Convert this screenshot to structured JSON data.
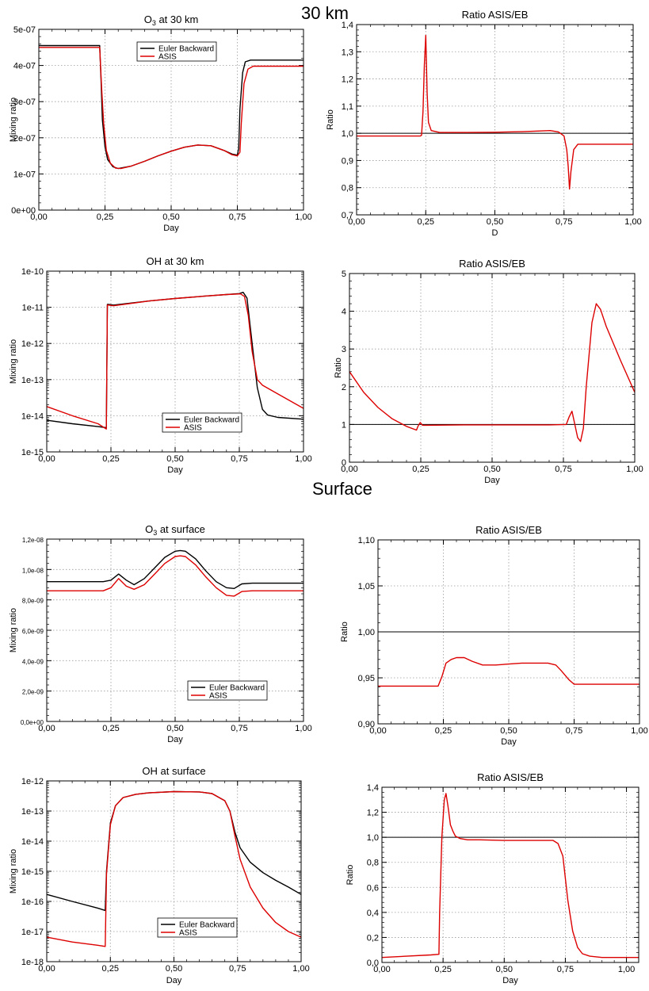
{
  "sections": {
    "top": "30 km",
    "middle": "Surface"
  },
  "colors": {
    "euler": "#000000",
    "asis": "#dd0000",
    "grid": "#9a9a9a"
  },
  "chart_data": [
    {
      "id": "o3-30km",
      "type": "line",
      "title": "O",
      "title_sub": "3",
      "title_rest": " at 30 km",
      "xlabel": "Day",
      "ylabel": "Mixing ratio",
      "yscale": "linear",
      "xlim": [
        0,
        1
      ],
      "ylim": [
        0,
        5e-07
      ],
      "xticks": [
        "0,00",
        "0,25",
        "0,50",
        "0,75",
        "1,00"
      ],
      "yticks": [
        [
          0,
          "0e+00"
        ],
        [
          1e-07,
          "1e-07"
        ],
        [
          2e-07,
          "2e-07"
        ],
        [
          3e-07,
          "3e-07"
        ],
        [
          4e-07,
          "4e-07"
        ],
        [
          5e-07,
          "5e-07"
        ]
      ],
      "ref_line": null,
      "legend": {
        "position": "top-center",
        "entries": [
          "Euler Backward",
          "ASIS"
        ]
      },
      "series": [
        {
          "name": "Euler Backward",
          "color": "euler",
          "x": [
            0,
            0.23,
            0.235,
            0.24,
            0.25,
            0.26,
            0.28,
            0.3,
            0.35,
            0.4,
            0.45,
            0.5,
            0.55,
            0.6,
            0.65,
            0.7,
            0.73,
            0.75,
            0.755,
            0.76,
            0.77,
            0.78,
            0.8,
            0.85,
            1
          ],
          "y": [
            4.55e-07,
            4.55e-07,
            3.6e-07,
            2.5e-07,
            1.75e-07,
            1.4e-07,
            1.2e-07,
            1.15e-07,
            1.22e-07,
            1.35e-07,
            1.5e-07,
            1.63e-07,
            1.74e-07,
            1.8e-07,
            1.78e-07,
            1.65e-07,
            1.55e-07,
            1.52e-07,
            1.7e-07,
            2.8e-07,
            3.8e-07,
            4.1e-07,
            4.15e-07,
            4.15e-07,
            4.15e-07
          ]
        },
        {
          "name": "ASIS",
          "color": "asis",
          "x": [
            0,
            0.23,
            0.237,
            0.245,
            0.255,
            0.27,
            0.29,
            0.31,
            0.35,
            0.4,
            0.45,
            0.5,
            0.55,
            0.6,
            0.65,
            0.7,
            0.73,
            0.75,
            0.76,
            0.765,
            0.775,
            0.79,
            0.81,
            0.85,
            1
          ],
          "y": [
            4.5e-07,
            4.5e-07,
            3.4e-07,
            2.4e-07,
            1.65e-07,
            1.3e-07,
            1.16e-07,
            1.15e-07,
            1.22e-07,
            1.35e-07,
            1.5e-07,
            1.63e-07,
            1.74e-07,
            1.8e-07,
            1.78e-07,
            1.65e-07,
            1.53e-07,
            1.5e-07,
            1.6e-07,
            2.4e-07,
            3.5e-07,
            3.9e-07,
            3.98e-07,
            3.98e-07,
            3.98e-07
          ]
        }
      ]
    },
    {
      "id": "ratio-o3-30km",
      "type": "line",
      "title": "Ratio ASIS/EB",
      "xlabel": "D",
      "ylabel": "Ratio",
      "yscale": "linear",
      "xlim": [
        0,
        1
      ],
      "ylim": [
        0.7,
        1.4
      ],
      "xticks": [
        "0,00",
        "0,25",
        "0,50",
        "0,75",
        "1,00"
      ],
      "yticks": [
        [
          0.7,
          "0,7"
        ],
        [
          0.8,
          "0,8"
        ],
        [
          0.9,
          "0,9"
        ],
        [
          1.0,
          "1,0"
        ],
        [
          1.1,
          "1,1"
        ],
        [
          1.2,
          "1,2"
        ],
        [
          1.3,
          "1,3"
        ],
        [
          1.4,
          "1,4"
        ]
      ],
      "ref_line": 1.0,
      "legend": null,
      "series": [
        {
          "name": "",
          "color": "asis",
          "x": [
            0,
            0.23,
            0.235,
            0.24,
            0.245,
            0.25,
            0.255,
            0.26,
            0.27,
            0.3,
            0.4,
            0.5,
            0.6,
            0.7,
            0.73,
            0.75,
            0.76,
            0.765,
            0.77,
            0.775,
            0.785,
            0.8,
            0.9,
            1
          ],
          "y": [
            0.99,
            0.99,
            0.993,
            1.08,
            1.25,
            1.36,
            1.15,
            1.04,
            1.01,
            1.003,
            1.003,
            1.004,
            1.006,
            1.01,
            1.005,
            0.99,
            0.94,
            0.88,
            0.795,
            0.86,
            0.94,
            0.96,
            0.96,
            0.96
          ]
        }
      ]
    },
    {
      "id": "oh-30km",
      "type": "line",
      "title": "OH at 30 km",
      "xlabel": "Day",
      "ylabel": "Mixing ratio",
      "yscale": "log",
      "xlim": [
        0,
        1
      ],
      "ylim": [
        1e-15,
        1e-10
      ],
      "xticks": [
        "0,00",
        "0,25",
        "0,50",
        "0,75",
        "1,00"
      ],
      "yticks": [
        [
          1e-15,
          "1e-15"
        ],
        [
          1e-14,
          "1e-14"
        ],
        [
          1e-13,
          "1e-13"
        ],
        [
          1e-12,
          "1e-12"
        ],
        [
          1e-11,
          "1e-11"
        ],
        [
          1e-10,
          "1e-10"
        ]
      ],
      "ref_line": null,
      "legend": {
        "position": "bottom-right",
        "entries": [
          "Euler Backward",
          "ASIS"
        ]
      },
      "series": [
        {
          "name": "Euler Backward",
          "color": "euler",
          "x": [
            0,
            0.1,
            0.2,
            0.232,
            0.236,
            0.24,
            0.26,
            0.4,
            0.5,
            0.6,
            0.7,
            0.75,
            0.765,
            0.78,
            0.8,
            0.82,
            0.84,
            0.86,
            0.9,
            1
          ],
          "y": [
            7.5e-15,
            6e-15,
            5e-15,
            4.7e-15,
            1.2e-11,
            1.2e-11,
            1.15e-11,
            1.5e-11,
            1.75e-11,
            2e-11,
            2.25e-11,
            2.4e-11,
            2.6e-11,
            1.8e-11,
            1e-12,
            6e-14,
            1.5e-14,
            1.05e-14,
            9e-15,
            8e-15
          ]
        },
        {
          "name": "ASIS",
          "color": "asis",
          "x": [
            0,
            0.1,
            0.2,
            0.232,
            0.236,
            0.24,
            0.26,
            0.4,
            0.5,
            0.6,
            0.7,
            0.755,
            0.77,
            0.785,
            0.8,
            0.82,
            0.84,
            0.9,
            1
          ],
          "y": [
            1.8e-14,
            1e-14,
            6e-15,
            4.3e-15,
            1.15e-11,
            1.15e-11,
            1.1e-11,
            1.5e-11,
            1.75e-11,
            2e-11,
            2.25e-11,
            2.35e-11,
            2e-11,
            6e-12,
            6e-13,
            1e-13,
            7e-14,
            4e-14,
            1.6e-14
          ]
        }
      ]
    },
    {
      "id": "ratio-oh-30km",
      "type": "line",
      "title": "Ratio ASIS/EB",
      "xlabel": "Day",
      "ylabel": "Ratio",
      "yscale": "linear",
      "xlim": [
        0,
        1
      ],
      "ylim": [
        0,
        5
      ],
      "xticks": [
        "0,00",
        "0,25",
        "0,50",
        "0,75",
        "1,00"
      ],
      "yticks": [
        [
          0,
          "0"
        ],
        [
          1,
          "1"
        ],
        [
          2,
          "2"
        ],
        [
          3,
          "3"
        ],
        [
          4,
          "4"
        ],
        [
          5,
          "5"
        ]
      ],
      "ref_line": 1,
      "legend": null,
      "series": [
        {
          "name": "",
          "color": "asis",
          "x": [
            0,
            0.05,
            0.1,
            0.15,
            0.2,
            0.235,
            0.24,
            0.248,
            0.256,
            0.27,
            0.4,
            0.5,
            0.6,
            0.7,
            0.76,
            0.77,
            0.78,
            0.79,
            0.8,
            0.81,
            0.82,
            0.83,
            0.85,
            0.865,
            0.88,
            0.9,
            0.95,
            1
          ],
          "y": [
            2.4,
            1.85,
            1.45,
            1.15,
            0.95,
            0.85,
            0.95,
            1.05,
            0.98,
            0.98,
            0.99,
            0.99,
            0.99,
            0.99,
            1.0,
            1.2,
            1.35,
            1.0,
            0.65,
            0.55,
            0.9,
            2.0,
            3.7,
            4.2,
            4.05,
            3.6,
            2.7,
            1.85
          ]
        }
      ]
    },
    {
      "id": "o3-surface",
      "type": "line",
      "title": "O",
      "title_sub": "3",
      "title_rest": " at surface",
      "xlabel": "Day",
      "ylabel": "Mixing ratio",
      "yscale": "linear",
      "xlim": [
        0,
        1
      ],
      "ylim": [
        0,
        1.2e-08
      ],
      "xticks": [
        "0,00",
        "0,25",
        "0,50",
        "0,75",
        "1,00"
      ],
      "yticks": [
        [
          0,
          "0,0e+00"
        ],
        [
          2e-09,
          "2,0e-09"
        ],
        [
          4e-09,
          "4,0e-09"
        ],
        [
          6e-09,
          "6,0e-09"
        ],
        [
          8e-09,
          "8,0e-09"
        ],
        [
          1e-08,
          "1,0e-08"
        ],
        [
          1.2e-08,
          "1,2e-08"
        ]
      ],
      "ref_line": null,
      "legend": {
        "position": "bottom-center",
        "entries": [
          "Euler Backward",
          "ASIS"
        ]
      },
      "series": [
        {
          "name": "Euler Backward",
          "color": "euler",
          "x": [
            0,
            0.22,
            0.25,
            0.28,
            0.31,
            0.34,
            0.38,
            0.42,
            0.46,
            0.5,
            0.52,
            0.54,
            0.58,
            0.62,
            0.66,
            0.7,
            0.73,
            0.76,
            0.8,
            1
          ],
          "y": [
            9.2e-09,
            9.2e-09,
            9.3e-09,
            9.7e-09,
            9.3e-09,
            9e-09,
            9.4e-09,
            1.01e-08,
            1.08e-08,
            1.12e-08,
            1.125e-08,
            1.12e-08,
            1.07e-08,
            9.9e-09,
            9.2e-09,
            8.8e-09,
            8.75e-09,
            9.05e-09,
            9.1e-09,
            9.1e-09
          ]
        },
        {
          "name": "ASIS",
          "color": "asis",
          "x": [
            0,
            0.22,
            0.25,
            0.28,
            0.31,
            0.34,
            0.38,
            0.42,
            0.46,
            0.5,
            0.52,
            0.54,
            0.58,
            0.62,
            0.66,
            0.7,
            0.73,
            0.76,
            0.8,
            1
          ],
          "y": [
            8.6e-09,
            8.6e-09,
            8.8e-09,
            9.4e-09,
            8.9e-09,
            8.7e-09,
            9e-09,
            9.7e-09,
            1.04e-08,
            1.085e-08,
            1.09e-08,
            1.085e-08,
            1.03e-08,
            9.5e-09,
            8.8e-09,
            8.3e-09,
            8.25e-09,
            8.55e-09,
            8.6e-09,
            8.6e-09
          ]
        }
      ]
    },
    {
      "id": "ratio-o3-surface",
      "type": "line",
      "title": "Ratio ASIS/EB",
      "xlabel": "Day",
      "ylabel": "Ratio",
      "yscale": "linear",
      "xlim": [
        0,
        1
      ],
      "ylim": [
        0.9,
        1.1
      ],
      "xticks": [
        "0,00",
        "0,25",
        "0,50",
        "0,75",
        "1,00"
      ],
      "yticks": [
        [
          0.9,
          "0,90"
        ],
        [
          0.95,
          "0,95"
        ],
        [
          1.0,
          "1,00"
        ],
        [
          1.05,
          "1,05"
        ],
        [
          1.1,
          "1,10"
        ]
      ],
      "ref_line": 1.0,
      "legend": null,
      "series": [
        {
          "name": "",
          "color": "asis",
          "x": [
            0,
            0.2,
            0.23,
            0.245,
            0.26,
            0.28,
            0.3,
            0.33,
            0.36,
            0.4,
            0.45,
            0.5,
            0.55,
            0.6,
            0.65,
            0.68,
            0.7,
            0.73,
            0.75,
            0.8,
            1
          ],
          "y": [
            0.941,
            0.941,
            0.941,
            0.952,
            0.966,
            0.97,
            0.972,
            0.972,
            0.968,
            0.964,
            0.964,
            0.965,
            0.966,
            0.966,
            0.966,
            0.964,
            0.958,
            0.948,
            0.943,
            0.943,
            0.943
          ]
        }
      ]
    },
    {
      "id": "oh-surface",
      "type": "line",
      "title": "OH at surface",
      "xlabel": "Day",
      "ylabel": "Mixing ratio",
      "yscale": "log",
      "xlim": [
        0,
        1
      ],
      "ylim": [
        1e-18,
        1e-12
      ],
      "xticks": [
        "0,00",
        "0,25",
        "0,50",
        "0,75",
        "1,00"
      ],
      "yticks": [
        [
          1e-18,
          "1e-18"
        ],
        [
          1e-17,
          "1e-17"
        ],
        [
          1e-16,
          "1e-16"
        ],
        [
          1e-15,
          "1e-15"
        ],
        [
          1e-14,
          "1e-14"
        ],
        [
          1e-13,
          "1e-13"
        ],
        [
          1e-12,
          "1e-12"
        ]
      ],
      "ref_line": null,
      "legend": {
        "position": "bottom-center",
        "entries": [
          "Euler Backward",
          "ASIS"
        ]
      },
      "series": [
        {
          "name": "Euler Backward",
          "color": "euler",
          "x": [
            0,
            0.1,
            0.2,
            0.23,
            0.235,
            0.25,
            0.27,
            0.3,
            0.35,
            0.4,
            0.5,
            0.6,
            0.65,
            0.7,
            0.72,
            0.74,
            0.76,
            0.8,
            0.85,
            0.9,
            0.95,
            1
          ],
          "y": [
            1.7e-16,
            1e-16,
            6e-17,
            5e-17,
            1e-15,
            4e-14,
            1.5e-13,
            2.8e-13,
            3.6e-13,
            4e-13,
            4.4e-13,
            4.3e-13,
            3.8e-13,
            2.2e-13,
            1e-13,
            2e-14,
            6e-15,
            2e-15,
            9e-16,
            5e-16,
            3e-16,
            1.7e-16
          ]
        },
        {
          "name": "ASIS",
          "color": "asis",
          "x": [
            0,
            0.1,
            0.2,
            0.23,
            0.235,
            0.25,
            0.27,
            0.3,
            0.35,
            0.4,
            0.5,
            0.6,
            0.65,
            0.7,
            0.72,
            0.74,
            0.76,
            0.8,
            0.85,
            0.9,
            0.95,
            1
          ],
          "y": [
            6.5e-18,
            4.5e-18,
            3.5e-18,
            3.2e-18,
            8e-16,
            3.5e-14,
            1.5e-13,
            2.8e-13,
            3.6e-13,
            4e-13,
            4.4e-13,
            4.3e-13,
            3.8e-13,
            2.2e-13,
            1e-13,
            1.5e-14,
            2.5e-15,
            3e-16,
            6e-17,
            2e-17,
            1e-17,
            6.5e-18
          ]
        }
      ]
    },
    {
      "id": "ratio-oh-surface",
      "type": "line",
      "title": "Ratio ASIS/EB",
      "xlabel": "Day",
      "ylabel": "Ratio",
      "yscale": "linear",
      "xlim": [
        0,
        1.05
      ],
      "ylim": [
        0,
        1.4
      ],
      "xticks": [
        "0,00",
        "0,25",
        "0,50",
        "0,75",
        "1,00"
      ],
      "yticks": [
        [
          0,
          "0,0"
        ],
        [
          0.2,
          "0,2"
        ],
        [
          0.4,
          "0,4"
        ],
        [
          0.6,
          "0,6"
        ],
        [
          0.8,
          "0,8"
        ],
        [
          1.0,
          "1,0"
        ],
        [
          1.2,
          "1,2"
        ],
        [
          1.4,
          "1,4"
        ]
      ],
      "ref_line": 1.0,
      "legend": null,
      "series": [
        {
          "name": "",
          "color": "asis",
          "x": [
            0,
            0.1,
            0.2,
            0.233,
            0.236,
            0.245,
            0.255,
            0.262,
            0.27,
            0.28,
            0.29,
            0.3,
            0.32,
            0.35,
            0.4,
            0.5,
            0.6,
            0.7,
            0.72,
            0.74,
            0.76,
            0.78,
            0.8,
            0.82,
            0.85,
            0.9,
            1.0,
            1.05
          ],
          "y": [
            0.04,
            0.05,
            0.06,
            0.065,
            0.4,
            1.0,
            1.3,
            1.35,
            1.25,
            1.1,
            1.05,
            1.01,
            0.99,
            0.98,
            0.98,
            0.975,
            0.975,
            0.975,
            0.95,
            0.85,
            0.5,
            0.25,
            0.12,
            0.07,
            0.05,
            0.04,
            0.04,
            0.04
          ]
        }
      ]
    }
  ]
}
